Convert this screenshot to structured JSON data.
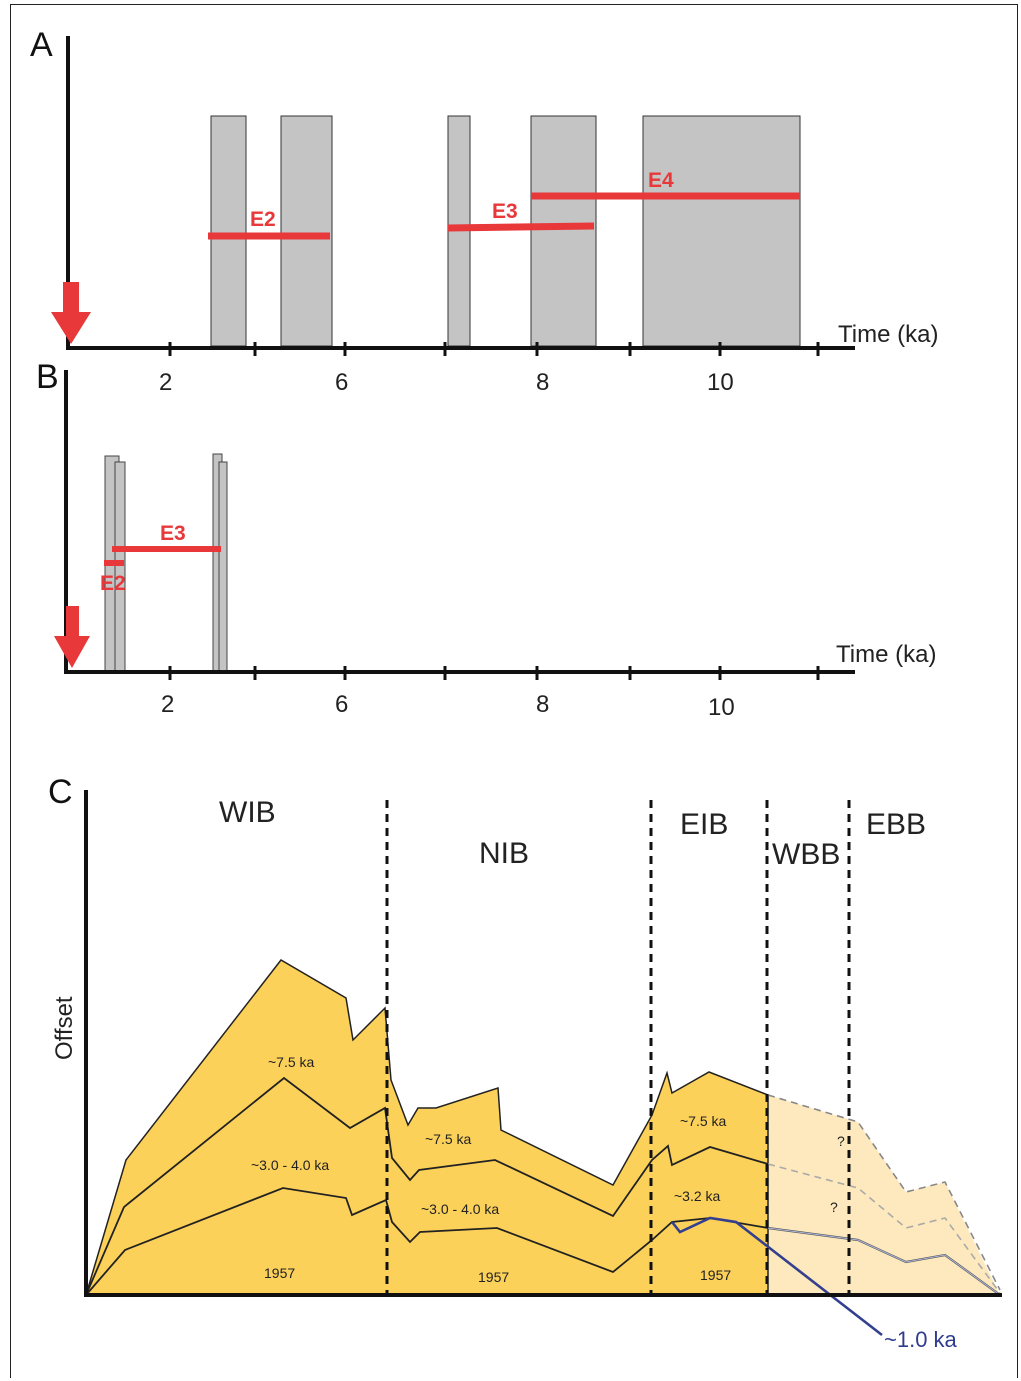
{
  "colors": {
    "axis": "#111111",
    "bar_fill": "#c4c4c4",
    "event": "#e8383a",
    "offset_fill": "#fcd15a",
    "offset_fill_light": "#fde9bd",
    "offset_line": "#222222",
    "blue_line": "#34408f"
  },
  "panel_a": {
    "label": "A",
    "axis_title": "Time (ka)",
    "ticks": [
      "2",
      "6",
      "8",
      "10"
    ],
    "events": [
      "E2",
      "E3",
      "E4"
    ]
  },
  "panel_b": {
    "label": "B",
    "axis_title": "Time (ka)",
    "ticks": [
      "2",
      "6",
      "8",
      "10"
    ],
    "events": [
      "E3",
      "E2"
    ]
  },
  "panel_c": {
    "label": "C",
    "y_axis_title": "Offset",
    "regions": [
      "WIB",
      "NIB",
      "EIB",
      "WBB",
      "EBB"
    ],
    "wib": {
      "top": "~7.5 ka",
      "mid": "~3.0 - 4.0 ka",
      "low": "1957"
    },
    "nib": {
      "top": "~7.5 ka",
      "mid": "~3.0 - 4.0 ka",
      "low": "1957"
    },
    "eib": {
      "top": "~7.5 ka",
      "mid": "~3.2 ka",
      "low": "1957"
    },
    "wbb": {
      "q1": "?",
      "q2": "?"
    },
    "blue_label": "~1.0 ka"
  }
}
